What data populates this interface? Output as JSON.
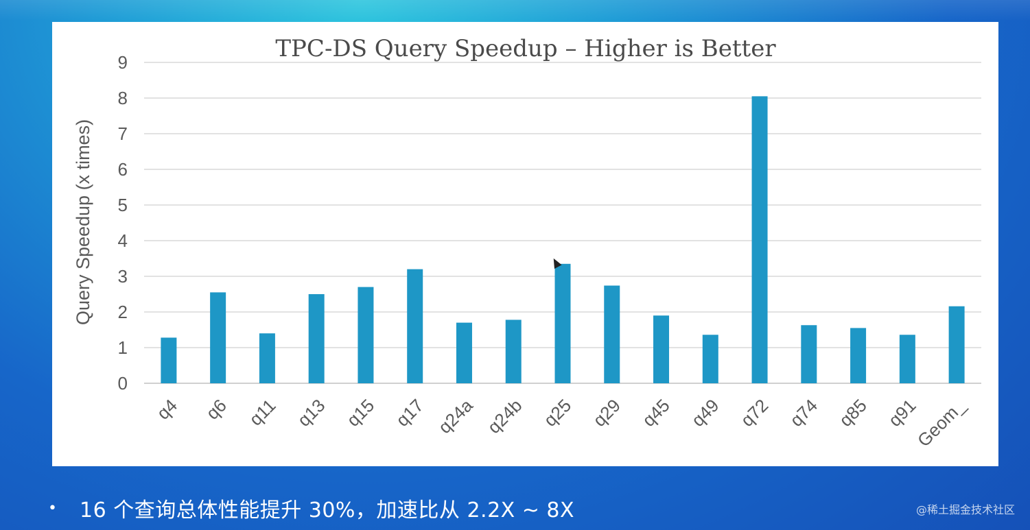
{
  "chart_data": {
    "type": "bar",
    "title": "TPC-DS Query Speedup – Higher is Better",
    "xlabel": "",
    "ylabel": "Query Speedup (x times)",
    "ylim": [
      0,
      9
    ],
    "yticks": [
      0,
      1,
      2,
      3,
      4,
      5,
      6,
      7,
      8,
      9
    ],
    "grid": true,
    "bar_color": "#1e97c6",
    "categories": [
      "q4",
      "q6",
      "q11",
      "q13",
      "q15",
      "q17",
      "q24a",
      "q24b",
      "q25",
      "q29",
      "q45",
      "q49",
      "q72",
      "q74",
      "q85",
      "q91",
      "Geom_"
    ],
    "values": [
      1.28,
      2.55,
      1.4,
      2.5,
      2.7,
      3.2,
      1.7,
      1.78,
      3.35,
      2.74,
      1.9,
      1.36,
      8.05,
      1.63,
      1.55,
      1.36,
      2.16
    ]
  },
  "slide": {
    "bullet_symbol": "•",
    "bullet_text": "16 个查询总体性能提升 30%，加速比从 2.2X ~ 8X",
    "watermark": "@稀土掘金技术社区"
  },
  "colors": {
    "background": "#1766c9",
    "panel": "#ffffff",
    "text_light": "#ffffff"
  }
}
